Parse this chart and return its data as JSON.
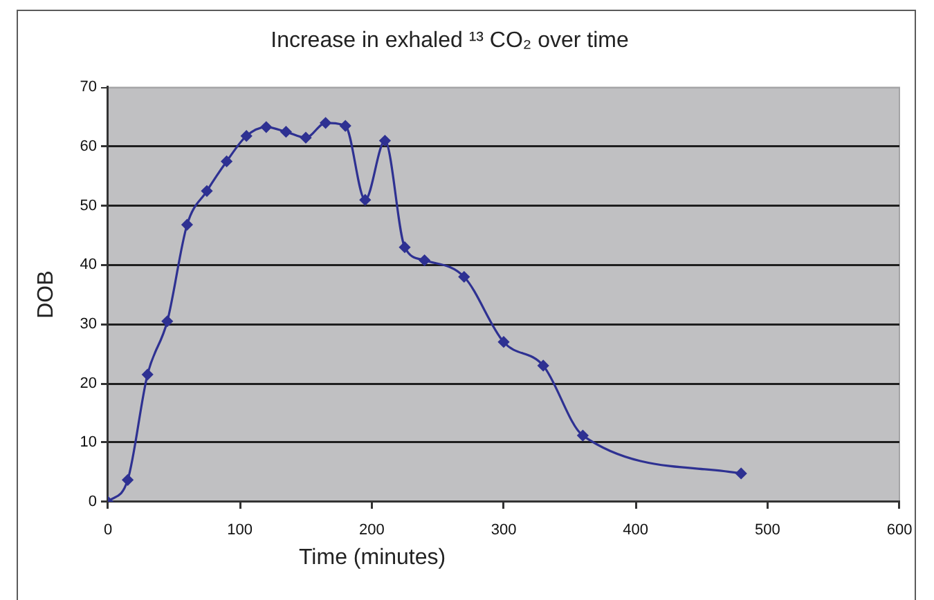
{
  "chart_data": {
    "type": "line",
    "title": "Increase in exhaled ¹³ CO₂ over time",
    "xlabel": "Time (minutes)",
    "ylabel": "DOB",
    "x": [
      0,
      15,
      30,
      45,
      60,
      75,
      90,
      105,
      120,
      135,
      150,
      165,
      180,
      195,
      210,
      225,
      240,
      270,
      300,
      330,
      360,
      480
    ],
    "series": [
      {
        "color": "#2e3192",
        "values": [
          0,
          3.7,
          21.5,
          30.5,
          46.8,
          52.5,
          57.5,
          61.8,
          63.3,
          62.5,
          61.5,
          64,
          63.5,
          51,
          61,
          43,
          40.8,
          38,
          27,
          23,
          11.2,
          4.8
        ]
      }
    ],
    "xlim": [
      0,
      600
    ],
    "ylim": [
      0,
      70
    ],
    "xticks": [
      0,
      100,
      200,
      300,
      400,
      500,
      600
    ],
    "yticks": [
      0,
      10,
      20,
      30,
      40,
      50,
      60,
      70
    ],
    "grid": "y",
    "marker": "diamond",
    "line_style": "solid"
  }
}
